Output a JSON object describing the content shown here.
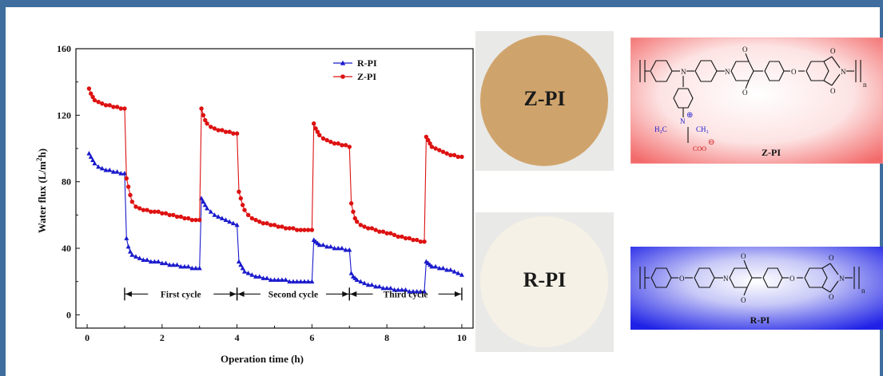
{
  "chart_data": {
    "type": "line",
    "xlabel": "Operation time (h)",
    "ylabel": "Water flux (L/m²h)",
    "ylabel_parts": {
      "before": "Water flux (L/m",
      "sup": "2",
      "after": "h)"
    },
    "xlim": [
      -0.3,
      10.3
    ],
    "ylim": [
      -8,
      160
    ],
    "xticks": [
      0,
      2,
      4,
      6,
      8,
      10
    ],
    "yticks": [
      0,
      40,
      80,
      120,
      160
    ],
    "legend_position": "top-right",
    "grid": false,
    "series": [
      {
        "name": "R-PI",
        "color": "#1a1acc",
        "marker": "triangle",
        "x": [
          0.05,
          0.1,
          0.15,
          0.2,
          0.3,
          0.4,
          0.5,
          0.6,
          0.7,
          0.8,
          0.9,
          1.0,
          1.05,
          1.1,
          1.15,
          1.2,
          1.3,
          1.4,
          1.5,
          1.6,
          1.7,
          1.8,
          1.9,
          2.0,
          2.1,
          2.2,
          2.3,
          2.4,
          2.5,
          2.6,
          2.7,
          2.8,
          2.9,
          3.0,
          3.05,
          3.1,
          3.15,
          3.2,
          3.3,
          3.4,
          3.5,
          3.6,
          3.7,
          3.8,
          3.9,
          4.0,
          4.05,
          4.1,
          4.15,
          4.2,
          4.3,
          4.4,
          4.5,
          4.6,
          4.7,
          4.8,
          4.9,
          5.0,
          5.1,
          5.2,
          5.3,
          5.4,
          5.5,
          5.6,
          5.7,
          5.8,
          5.9,
          6.0,
          6.05,
          6.1,
          6.15,
          6.2,
          6.3,
          6.4,
          6.5,
          6.6,
          6.7,
          6.8,
          6.9,
          7.0,
          7.05,
          7.1,
          7.15,
          7.2,
          7.3,
          7.4,
          7.5,
          7.6,
          7.7,
          7.8,
          7.9,
          8.0,
          8.1,
          8.2,
          8.3,
          8.4,
          8.5,
          8.6,
          8.7,
          8.8,
          8.9,
          9.0,
          9.05,
          9.1,
          9.15,
          9.2,
          9.3,
          9.4,
          9.5,
          9.6,
          9.7,
          9.8,
          9.9,
          10.0
        ],
        "y": [
          97,
          95,
          93,
          91,
          89,
          88,
          87,
          87,
          86,
          86,
          85,
          85,
          46,
          41,
          38,
          36,
          35,
          34,
          33,
          33,
          32,
          32,
          32,
          31,
          31,
          30,
          30,
          30,
          29,
          29,
          29,
          28,
          28,
          28,
          70,
          68,
          66,
          64,
          62,
          60,
          59,
          58,
          57,
          56,
          55,
          54,
          32,
          30,
          28,
          26,
          25,
          24,
          23,
          23,
          22,
          22,
          21,
          21,
          21,
          21,
          21,
          20,
          20,
          20,
          20,
          20,
          20,
          20,
          45,
          44,
          43,
          42,
          42,
          41,
          41,
          40,
          40,
          40,
          39,
          39,
          25,
          23,
          22,
          21,
          20,
          19,
          18,
          18,
          17,
          17,
          16,
          16,
          16,
          15,
          15,
          15,
          15,
          14,
          14,
          14,
          14,
          14,
          32,
          31,
          30,
          29,
          29,
          28,
          28,
          27,
          27,
          26,
          25,
          24
        ]
      },
      {
        "name": "Z-PI",
        "color": "#dd1111",
        "marker": "circle",
        "x": [
          0.05,
          0.1,
          0.15,
          0.2,
          0.3,
          0.4,
          0.5,
          0.6,
          0.7,
          0.8,
          0.9,
          1.0,
          1.05,
          1.1,
          1.15,
          1.2,
          1.3,
          1.4,
          1.5,
          1.6,
          1.7,
          1.8,
          1.9,
          2.0,
          2.1,
          2.2,
          2.3,
          2.4,
          2.5,
          2.6,
          2.7,
          2.8,
          2.9,
          3.0,
          3.05,
          3.1,
          3.15,
          3.2,
          3.3,
          3.4,
          3.5,
          3.6,
          3.7,
          3.8,
          3.9,
          4.0,
          4.05,
          4.1,
          4.15,
          4.2,
          4.3,
          4.4,
          4.5,
          4.6,
          4.7,
          4.8,
          4.9,
          5.0,
          5.1,
          5.2,
          5.3,
          5.4,
          5.5,
          5.6,
          5.7,
          5.8,
          5.9,
          6.0,
          6.05,
          6.1,
          6.15,
          6.2,
          6.3,
          6.4,
          6.5,
          6.6,
          6.7,
          6.8,
          6.9,
          7.0,
          7.05,
          7.1,
          7.15,
          7.2,
          7.3,
          7.4,
          7.5,
          7.6,
          7.7,
          7.8,
          7.9,
          8.0,
          8.1,
          8.2,
          8.3,
          8.4,
          8.5,
          8.6,
          8.7,
          8.8,
          8.9,
          9.0,
          9.05,
          9.1,
          9.15,
          9.2,
          9.3,
          9.4,
          9.5,
          9.6,
          9.7,
          9.8,
          9.9,
          10.0
        ],
        "y": [
          136,
          133,
          131,
          129,
          128,
          127,
          126,
          126,
          125,
          125,
          124,
          124,
          82,
          77,
          72,
          68,
          65,
          64,
          63,
          63,
          62,
          62,
          62,
          61,
          61,
          60,
          60,
          59,
          59,
          58,
          58,
          57,
          57,
          57,
          124,
          120,
          117,
          115,
          113,
          112,
          111,
          111,
          110,
          110,
          109,
          109,
          74,
          70,
          66,
          63,
          60,
          58,
          57,
          56,
          55,
          55,
          54,
          54,
          53,
          53,
          52,
          52,
          52,
          51,
          51,
          51,
          51,
          51,
          115,
          112,
          110,
          108,
          106,
          105,
          104,
          103,
          103,
          102,
          102,
          101,
          67,
          62,
          58,
          56,
          54,
          53,
          52,
          52,
          51,
          50,
          50,
          49,
          49,
          48,
          47,
          47,
          46,
          46,
          45,
          45,
          44,
          44,
          107,
          105,
          103,
          101,
          100,
          99,
          98,
          97,
          96,
          96,
          95,
          95
        ]
      }
    ],
    "cycles": [
      {
        "label": "First cycle",
        "from": 1,
        "to": 4
      },
      {
        "label": "Second cycle",
        "from": 4,
        "to": 7
      },
      {
        "label": "Third cycle",
        "from": 7,
        "to": 10
      }
    ]
  },
  "photos": {
    "top": {
      "label": "Z-PI",
      "color": "#cfa46c"
    },
    "bottom": {
      "label": "R-PI",
      "color": "#f6f1e6"
    }
  },
  "structures": {
    "top": {
      "label": "Z-PI",
      "n": "n",
      "h3c": "H₃C",
      "ch3": "CH₃",
      "n_plus": "N",
      "plus": "⊕",
      "coo": "COO",
      "minus": "⊖",
      "o": "O",
      "n_atom": "N",
      "bg": "#f36a6a"
    },
    "bottom": {
      "label": "R-PI",
      "n": "n",
      "o": "O",
      "n_atom": "N",
      "bg": "#1f22e6"
    }
  }
}
